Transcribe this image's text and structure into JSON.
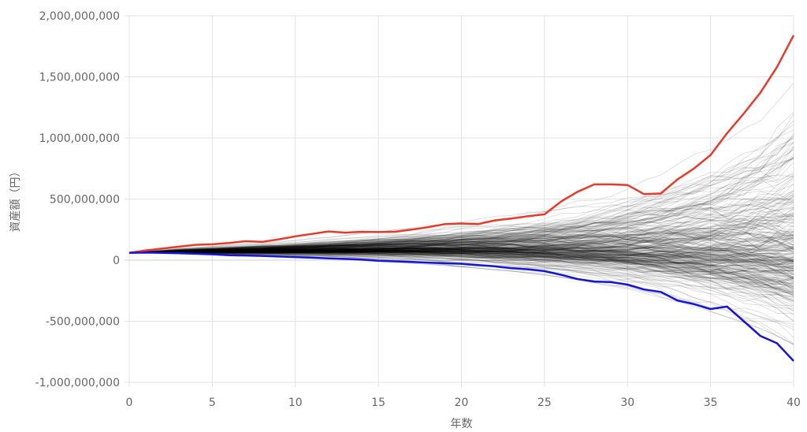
{
  "chart_data": {
    "type": "line",
    "title": "",
    "xlabel": "年数",
    "ylabel": "資産額（円）",
    "xlim": [
      0,
      40
    ],
    "ylim": [
      -1000000000,
      2000000000
    ],
    "grid": true,
    "legend": "none",
    "x_ticks": [
      0,
      5,
      10,
      15,
      20,
      25,
      30,
      35,
      40
    ],
    "x_tick_labels": [
      "0",
      "5",
      "10",
      "15",
      "20",
      "25",
      "30",
      "35",
      "40"
    ],
    "y_ticks": [
      -1000000000,
      -500000000,
      0,
      500000000,
      1000000000,
      1500000000,
      2000000000
    ],
    "y_tick_labels": [
      "-1,000,000,000",
      "-500,000,000",
      "0",
      "500,000,000",
      "1,000,000,000",
      "1,500,000,000",
      "2,000,000,000"
    ],
    "x": [
      0,
      1,
      2,
      3,
      4,
      5,
      6,
      7,
      8,
      9,
      10,
      11,
      12,
      13,
      14,
      15,
      16,
      17,
      18,
      19,
      20,
      21,
      22,
      23,
      24,
      25,
      26,
      27,
      28,
      29,
      30,
      31,
      32,
      33,
      34,
      35,
      36,
      37,
      38,
      39,
      40
    ],
    "series": [
      {
        "color": "#e53b2c",
        "values": [
          60000000,
          80000000,
          95000000,
          110000000,
          125000000,
          130000000,
          140000000,
          155000000,
          150000000,
          170000000,
          195000000,
          215000000,
          235000000,
          225000000,
          232000000,
          230000000,
          232000000,
          250000000,
          270000000,
          295000000,
          300000000,
          295000000,
          325000000,
          340000000,
          360000000,
          375000000,
          480000000,
          560000000,
          620000000,
          620000000,
          615000000,
          540000000,
          545000000,
          660000000,
          750000000,
          860000000,
          1040000000,
          1200000000,
          1370000000,
          1580000000,
          1840000000
        ]
      },
      {
        "color": "#1515d8",
        "values": [
          60000000,
          62000000,
          60000000,
          57000000,
          52000000,
          48000000,
          40000000,
          38000000,
          35000000,
          30000000,
          25000000,
          20000000,
          15000000,
          10000000,
          5000000,
          -5000000,
          -10000000,
          -15000000,
          -20000000,
          -25000000,
          -30000000,
          -40000000,
          -50000000,
          -65000000,
          -75000000,
          -90000000,
          -120000000,
          -155000000,
          -175000000,
          -180000000,
          -200000000,
          -240000000,
          -260000000,
          -330000000,
          -360000000,
          -400000000,
          -380000000,
          -500000000,
          -620000000,
          -680000000,
          -825000000
        ]
      }
    ],
    "background_band": {
      "description_color": "#000000",
      "median": [
        60000000,
        64000000,
        66000000,
        68000000,
        70000000,
        72000000,
        74000000,
        76000000,
        78000000,
        80000000,
        82000000,
        84000000,
        86000000,
        88000000,
        90000000,
        92000000,
        94000000,
        96000000,
        98000000,
        99000000,
        100000000,
        101000000,
        102000000,
        103000000,
        104000000,
        105000000,
        106000000,
        107000000,
        108000000,
        109000000,
        110000000,
        111000000,
        112000000,
        112000000,
        113000000,
        113000000,
        114000000,
        114000000,
        115000000,
        115000000,
        116000000
      ],
      "upper_envelope": [
        60000000,
        75000000,
        90000000,
        105000000,
        115000000,
        125000000,
        135000000,
        145000000,
        155000000,
        165000000,
        178000000,
        192000000,
        205000000,
        220000000,
        235000000,
        250000000,
        265000000,
        280000000,
        300000000,
        320000000,
        340000000,
        360000000,
        380000000,
        405000000,
        430000000,
        455000000,
        490000000,
        525000000,
        560000000,
        600000000,
        650000000,
        700000000,
        750000000,
        810000000,
        880000000,
        950000000,
        1030000000,
        1120000000,
        1220000000,
        1350000000,
        1500000000
      ],
      "lower_envelope": [
        60000000,
        58000000,
        55000000,
        52000000,
        48000000,
        44000000,
        40000000,
        36000000,
        32000000,
        28000000,
        22000000,
        16000000,
        10000000,
        4000000,
        -3000000,
        -10000000,
        -18000000,
        -26000000,
        -35000000,
        -45000000,
        -55000000,
        -66000000,
        -78000000,
        -90000000,
        -105000000,
        -120000000,
        -140000000,
        -160000000,
        -185000000,
        -210000000,
        -240000000,
        -270000000,
        -305000000,
        -340000000,
        -380000000,
        -420000000,
        -465000000,
        -510000000,
        -560000000,
        -620000000,
        -690000000
      ],
      "path_count": 300
    }
  }
}
